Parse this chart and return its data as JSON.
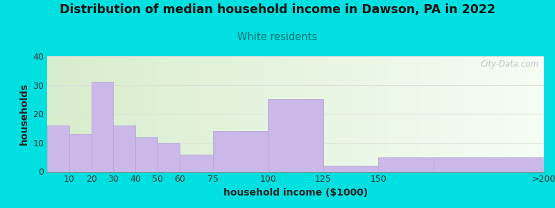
{
  "title": "Distribution of median household income in Dawson, PA in 2022",
  "subtitle": "White residents",
  "xlabel": "household income ($1000)",
  "ylabel": "households",
  "bin_edges": [
    0,
    10,
    20,
    30,
    40,
    50,
    60,
    75,
    100,
    125,
    150,
    175,
    225
  ],
  "bar_values": [
    16,
    13,
    31,
    16,
    12,
    10,
    6,
    14,
    25,
    2,
    5,
    5
  ],
  "tick_positions": [
    10,
    20,
    30,
    40,
    50,
    60,
    75,
    100,
    125,
    150,
    225
  ],
  "tick_labels": [
    "10",
    "20",
    "30",
    "40",
    "50",
    "60",
    "75",
    "100",
    "125",
    "150",
    ">200"
  ],
  "bar_color": "#c9b8e8",
  "bar_edge_color": "#b8a8d8",
  "background_color": "#00e0e0",
  "plot_bg_color_left": "#d8edcc",
  "plot_bg_color_right": "#f5fdf5",
  "title_color": "#111111",
  "subtitle_color": "#007070",
  "ylabel_color": "#222222",
  "xlabel_color": "#222222",
  "tick_color": "#333333",
  "ylim": [
    0,
    40
  ],
  "yticks": [
    0,
    10,
    20,
    30,
    40
  ],
  "title_fontsize": 12.5,
  "subtitle_fontsize": 10.5,
  "axis_label_fontsize": 10,
  "tick_fontsize": 9,
  "watermark_text": "City-Data.com",
  "watermark_color": "#b0b8c8",
  "figsize": [
    8.0,
    3.0
  ],
  "dpi": 100
}
